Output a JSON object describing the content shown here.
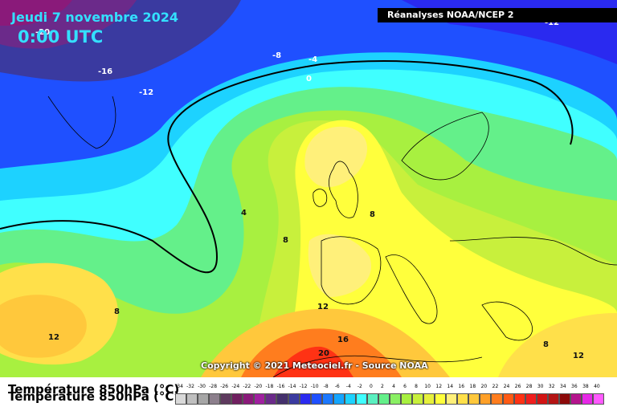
{
  "header": {
    "date": "Jeudi 7 novembre 2024",
    "time": "0:00 UTC",
    "source": "Réanalyses NOAA/NCEP 2"
  },
  "copyright": "Copyright © 2021 Meteociel.fr - Source NOAA",
  "legend": {
    "title": "Température 850hPa (°C)",
    "ticks": [
      "-34",
      "-32",
      "-30",
      "-28",
      "-26",
      "-24",
      "-22",
      "-20",
      "-18",
      "-16",
      "-14",
      "-12",
      "-10",
      "-8",
      "-6",
      "-4",
      "-2",
      "0",
      "2",
      "4",
      "6",
      "8",
      "10",
      "12",
      "14",
      "16",
      "18",
      "20",
      "22",
      "24",
      "26",
      "28",
      "30",
      "32",
      "34",
      "36",
      "38",
      "40"
    ],
    "colors": [
      "#d9d9d9",
      "#bfbfbf",
      "#a6a6a6",
      "#8c7f8c",
      "#5e3a5e",
      "#702060",
      "#8a1a7a",
      "#a020a0",
      "#6b2a8a",
      "#44306c",
      "#3a3aa0",
      "#2a2af0",
      "#1f50ff",
      "#1c78ff",
      "#14a5ff",
      "#1dd2ff",
      "#40ffff",
      "#5af0c0",
      "#64f08a",
      "#8af064",
      "#a8f040",
      "#c8f03c",
      "#e6f03c",
      "#ffff3c",
      "#fff07a",
      "#ffe04a",
      "#ffc83c",
      "#ffa028",
      "#ff7d1e",
      "#ff5a14",
      "#ff3214",
      "#f01e1e",
      "#d21414",
      "#b41414",
      "#8c0a0a",
      "#b4148c",
      "#e628e6",
      "#ff5aff"
    ]
  },
  "contour_labels": [
    {
      "text": "-20",
      "dark": false
    },
    {
      "text": "-16",
      "dark": false
    },
    {
      "text": "-12",
      "dark": false
    },
    {
      "text": "-12",
      "dark": false
    },
    {
      "text": "-8",
      "dark": false
    },
    {
      "text": "-4",
      "dark": false
    },
    {
      "text": "0",
      "dark": false
    },
    {
      "text": "4",
      "dark": true
    },
    {
      "text": "8",
      "dark": true
    },
    {
      "text": "8",
      "dark": true
    },
    {
      "text": "8",
      "dark": true
    },
    {
      "text": "12",
      "dark": true
    },
    {
      "text": "12",
      "dark": true
    },
    {
      "text": "16",
      "dark": true
    },
    {
      "text": "20",
      "dark": true
    },
    {
      "text": "8",
      "dark": true
    },
    {
      "text": "12",
      "dark": true
    }
  ]
}
